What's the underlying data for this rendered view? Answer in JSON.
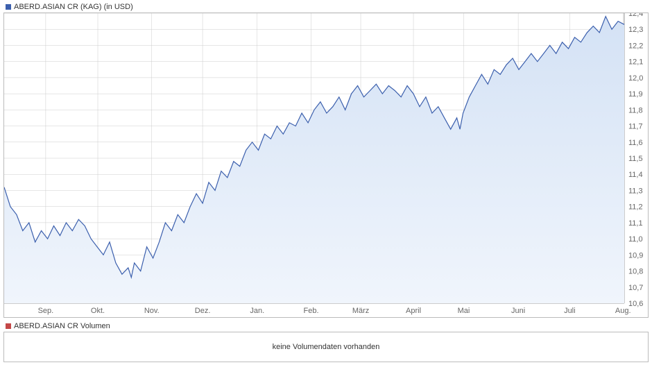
{
  "price_chart": {
    "type": "area",
    "legend_label": "ABERD.ASIAN CR (KAG) (in USD)",
    "legend_marker_color": "#3b5fad",
    "line_color": "#3b5fad",
    "fill_color_top": "#d4e2f5",
    "fill_color_bottom": "#f0f5fc",
    "background_color": "#ffffff",
    "border_color": "#bbbbbb",
    "grid_color": "#cccccc",
    "label_fontsize": 11,
    "label_color": "#666666",
    "ylim": [
      10.6,
      12.4
    ],
    "ytick_step": 0.1,
    "yticks": [
      "12,4",
      "12,3",
      "12,2",
      "12,1",
      "12,0",
      "11,9",
      "11,8",
      "11,7",
      "11,6",
      "11,5",
      "11,4",
      "11,3",
      "11,2",
      "11,1",
      "11,0",
      "10,9",
      "10,8",
      "10,7",
      "10,6"
    ],
    "x_labels": [
      "Sep.",
      "Okt.",
      "Nov.",
      "Dez.",
      "Jan.",
      "Feb.",
      "März",
      "April",
      "Mai",
      "Juni",
      "Juli",
      "Aug."
    ],
    "x_positions": [
      0.067,
      0.151,
      0.238,
      0.32,
      0.408,
      0.495,
      0.575,
      0.66,
      0.741,
      0.829,
      0.912,
      0.998
    ],
    "series": [
      [
        0.0,
        11.32
      ],
      [
        0.01,
        11.2
      ],
      [
        0.02,
        11.15
      ],
      [
        0.03,
        11.05
      ],
      [
        0.04,
        11.1
      ],
      [
        0.05,
        10.98
      ],
      [
        0.06,
        11.05
      ],
      [
        0.07,
        11.0
      ],
      [
        0.08,
        11.08
      ],
      [
        0.09,
        11.02
      ],
      [
        0.1,
        11.1
      ],
      [
        0.11,
        11.05
      ],
      [
        0.12,
        11.12
      ],
      [
        0.13,
        11.08
      ],
      [
        0.14,
        11.0
      ],
      [
        0.15,
        10.95
      ],
      [
        0.16,
        10.9
      ],
      [
        0.17,
        10.98
      ],
      [
        0.18,
        10.85
      ],
      [
        0.19,
        10.78
      ],
      [
        0.2,
        10.82
      ],
      [
        0.205,
        10.76
      ],
      [
        0.21,
        10.85
      ],
      [
        0.22,
        10.8
      ],
      [
        0.23,
        10.95
      ],
      [
        0.24,
        10.88
      ],
      [
        0.25,
        10.98
      ],
      [
        0.26,
        11.1
      ],
      [
        0.27,
        11.05
      ],
      [
        0.28,
        11.15
      ],
      [
        0.29,
        11.1
      ],
      [
        0.3,
        11.2
      ],
      [
        0.31,
        11.28
      ],
      [
        0.32,
        11.22
      ],
      [
        0.33,
        11.35
      ],
      [
        0.34,
        11.3
      ],
      [
        0.35,
        11.42
      ],
      [
        0.36,
        11.38
      ],
      [
        0.37,
        11.48
      ],
      [
        0.38,
        11.45
      ],
      [
        0.39,
        11.55
      ],
      [
        0.4,
        11.6
      ],
      [
        0.41,
        11.55
      ],
      [
        0.42,
        11.65
      ],
      [
        0.43,
        11.62
      ],
      [
        0.44,
        11.7
      ],
      [
        0.45,
        11.65
      ],
      [
        0.46,
        11.72
      ],
      [
        0.47,
        11.7
      ],
      [
        0.48,
        11.78
      ],
      [
        0.49,
        11.72
      ],
      [
        0.5,
        11.8
      ],
      [
        0.51,
        11.85
      ],
      [
        0.52,
        11.78
      ],
      [
        0.53,
        11.82
      ],
      [
        0.54,
        11.88
      ],
      [
        0.55,
        11.8
      ],
      [
        0.56,
        11.9
      ],
      [
        0.57,
        11.95
      ],
      [
        0.58,
        11.88
      ],
      [
        0.59,
        11.92
      ],
      [
        0.6,
        11.96
      ],
      [
        0.61,
        11.9
      ],
      [
        0.62,
        11.95
      ],
      [
        0.63,
        11.92
      ],
      [
        0.64,
        11.88
      ],
      [
        0.65,
        11.95
      ],
      [
        0.66,
        11.9
      ],
      [
        0.67,
        11.82
      ],
      [
        0.68,
        11.88
      ],
      [
        0.69,
        11.78
      ],
      [
        0.7,
        11.82
      ],
      [
        0.71,
        11.75
      ],
      [
        0.72,
        11.68
      ],
      [
        0.73,
        11.75
      ],
      [
        0.735,
        11.68
      ],
      [
        0.74,
        11.78
      ],
      [
        0.75,
        11.88
      ],
      [
        0.76,
        11.95
      ],
      [
        0.77,
        12.02
      ],
      [
        0.78,
        11.96
      ],
      [
        0.79,
        12.05
      ],
      [
        0.8,
        12.02
      ],
      [
        0.81,
        12.08
      ],
      [
        0.82,
        12.12
      ],
      [
        0.83,
        12.05
      ],
      [
        0.84,
        12.1
      ],
      [
        0.85,
        12.15
      ],
      [
        0.86,
        12.1
      ],
      [
        0.87,
        12.15
      ],
      [
        0.88,
        12.2
      ],
      [
        0.89,
        12.15
      ],
      [
        0.9,
        12.22
      ],
      [
        0.91,
        12.18
      ],
      [
        0.92,
        12.25
      ],
      [
        0.93,
        12.22
      ],
      [
        0.94,
        12.28
      ],
      [
        0.95,
        12.32
      ],
      [
        0.96,
        12.28
      ],
      [
        0.97,
        12.38
      ],
      [
        0.98,
        12.3
      ],
      [
        0.99,
        12.35
      ],
      [
        1.0,
        12.33
      ]
    ]
  },
  "volume_chart": {
    "legend_label": "ABERD.ASIAN CR Volumen",
    "legend_marker_color": "#c44848",
    "no_data_text": "keine Volumendaten vorhanden",
    "border_color": "#bbbbbb",
    "background_color": "#ffffff"
  }
}
